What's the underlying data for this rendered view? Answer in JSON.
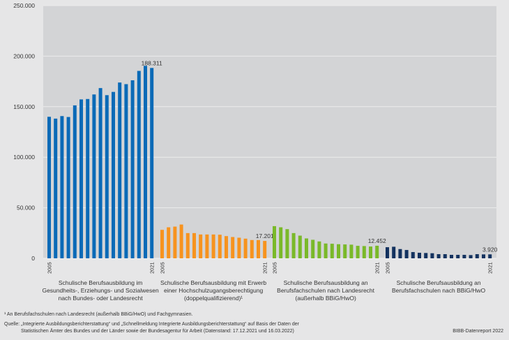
{
  "chart_data": {
    "type": "bar",
    "ylim": [
      0,
      250000
    ],
    "yticks": [
      0,
      50000,
      100000,
      150000,
      200000,
      250000
    ],
    "ytick_labels": [
      "0",
      "50.000",
      "100.000",
      "150.000",
      "200.000",
      "250.000"
    ],
    "grid": true,
    "years": [
      "2005",
      "2006",
      "2007",
      "2008",
      "2009",
      "2010",
      "2011",
      "2012",
      "2013",
      "2014",
      "2015",
      "2016",
      "2017",
      "2018",
      "2019",
      "2020",
      "2021"
    ],
    "year_labels_shown": [
      "2005",
      "2021"
    ],
    "series": [
      {
        "name": "Schulische Berufsausbildung im Gesundheits-, Erziehungs- und Sozialwesen nach Bundes- oder Landesrecht",
        "label_lines": [
          "Schulische Berufsausbildung im",
          "Gesundheits-, Erziehungs- und Sozialwesen",
          "nach Bundes- oder Landesrecht"
        ],
        "color": "#0a6ab7",
        "values": [
          140000,
          138200,
          140700,
          139800,
          151300,
          157200,
          157600,
          162100,
          168400,
          161400,
          164600,
          173900,
          172300,
          176100,
          185400,
          190400,
          188311
        ],
        "end_label": "188.311"
      },
      {
        "name": "Schulische Berufsausbildung mit Erwerb einer Hochschulzugangsberechtigung (doppelqualifizierend)¹",
        "label_lines": [
          "Schulische Berufsausbildung mit Erwerb",
          "einer Hochschulzugangsberechtigung",
          "(doppelqualifizierend)¹"
        ],
        "color": "#f7931e",
        "values": [
          28170,
          30690,
          31370,
          33430,
          24960,
          24960,
          23590,
          23590,
          23590,
          23360,
          21980,
          21070,
          20380,
          19470,
          18090,
          18090,
          17201
        ],
        "end_label": "17.201"
      },
      {
        "name": "Schulische Berufsausbildung an Berufsfachschulen nach Landesrecht (außerhalb BBiG/HwO)",
        "label_lines": [
          "Schulische Berufsausbildung an",
          "Berufsfachschulen nach Landesrecht",
          "(außerhalb BBiG/HwO)"
        ],
        "color": "#7ab929",
        "values": [
          31830,
          30690,
          28850,
          24960,
          22440,
          19690,
          18320,
          16720,
          14660,
          14430,
          13970,
          13740,
          13510,
          12370,
          12140,
          11680,
          12452
        ],
        "end_label": "12.452"
      },
      {
        "name": "Schulische Berufsausbildung an Berufsfachschulen nach BBiG/HwO",
        "label_lines": [
          "Schulische Berufsausbildung an",
          "Berufsfachschulen nach BBiG/HwO"
        ],
        "color": "#13325f",
        "values": [
          10990,
          11450,
          9160,
          8240,
          6180,
          5500,
          5270,
          5040,
          4120,
          4120,
          3440,
          3440,
          3440,
          3210,
          4120,
          3890,
          3920
        ],
        "end_label": "3.920"
      }
    ]
  },
  "footnote": "¹ An Berufsfachschulen nach Landesrecht (außerhalb BBiG/HwO) und Fachgymnasien.",
  "source_line1": "Quelle: „Integrierte Ausbildungsberichterstattung“ und „Schnellmeldung Integrierte Ausbildungsberichterstattung“ auf Basis der Daten der",
  "source_line2": "Statistischen Ämter des Bundes und der Länder sowie der Bundesagentur für Arbeit (Datenstand: 17.12.2021 und 16.03.2022)",
  "credit": "BIBB-Datenreport 2022"
}
